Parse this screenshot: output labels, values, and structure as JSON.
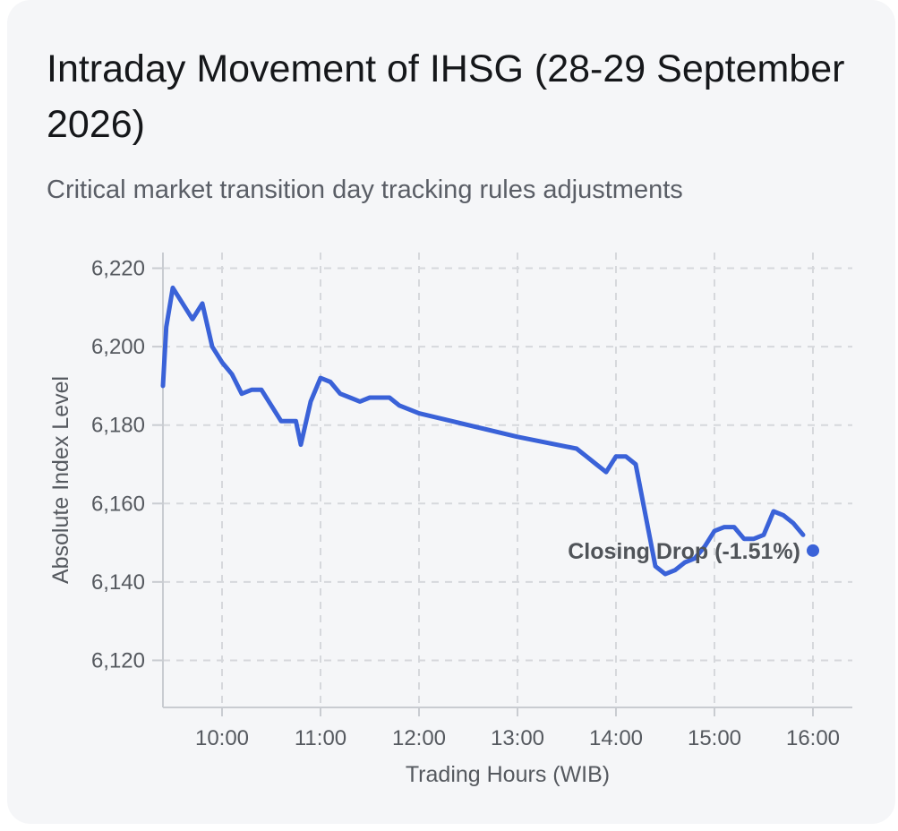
{
  "header": {
    "title": "Intraday Movement of IHSG (28-29 September 2026)",
    "subtitle": "Critical market transition day tracking rules adjustments"
  },
  "colors": {
    "line": "#3a62d8",
    "grid": "#d6d8dc",
    "axis": "#c9ccd1",
    "text": "#55595f"
  },
  "chart_data": {
    "type": "line",
    "xlabel": "Trading Hours (WIB)",
    "ylabel": "Absolute Index Level",
    "xlim": [
      "09:24",
      "16:24"
    ],
    "ylim": [
      6108,
      6224
    ],
    "grid": true,
    "x_ticks": [
      "10:00",
      "11:00",
      "12:00",
      "13:00",
      "14:00",
      "15:00",
      "16:00"
    ],
    "y_ticks": [
      6120,
      6140,
      6160,
      6180,
      6200,
      6220
    ],
    "y_tick_labels": [
      "6,120",
      "6,140",
      "6,160",
      "6,180",
      "6,200",
      "6,220"
    ],
    "series": [
      {
        "x": [
          "09:24",
          "09:26",
          "09:30",
          "09:36",
          "09:42",
          "09:48",
          "09:54",
          "10:00",
          "10:06",
          "10:12",
          "10:18",
          "10:24",
          "10:30",
          "10:36",
          "10:42",
          "10:45",
          "10:48",
          "10:54",
          "11:00",
          "11:06",
          "11:12",
          "11:18",
          "11:24",
          "11:30",
          "11:36",
          "11:42",
          "11:48",
          "11:54",
          "12:00",
          "13:00",
          "13:36",
          "13:42",
          "13:48",
          "13:54",
          "14:00",
          "14:06",
          "14:12",
          "14:18",
          "14:24",
          "14:30",
          "14:36",
          "14:42",
          "14:48",
          "14:54",
          "15:00",
          "15:06",
          "15:12",
          "15:18",
          "15:24",
          "15:30",
          "15:36",
          "15:42",
          "15:48",
          "15:54"
        ],
        "y": [
          6190,
          6205,
          6215,
          6211,
          6207,
          6211,
          6200,
          6196,
          6193,
          6188,
          6189,
          6189,
          6185,
          6181,
          6181,
          6181,
          6175,
          6186,
          6192,
          6191,
          6188,
          6187,
          6186,
          6187,
          6187,
          6187,
          6185,
          6184,
          6183,
          6177,
          6174,
          6172,
          6170,
          6168,
          6172,
          6172,
          6170,
          6157,
          6144,
          6142,
          6143,
          6145,
          6146,
          6149,
          6153,
          6154,
          6154,
          6151,
          6151,
          6152,
          6158,
          6157,
          6155,
          6152
        ]
      }
    ],
    "annotations": [
      {
        "text": "Closing Drop (-1.51%)",
        "x": "16:00",
        "y": 6148
      }
    ]
  }
}
